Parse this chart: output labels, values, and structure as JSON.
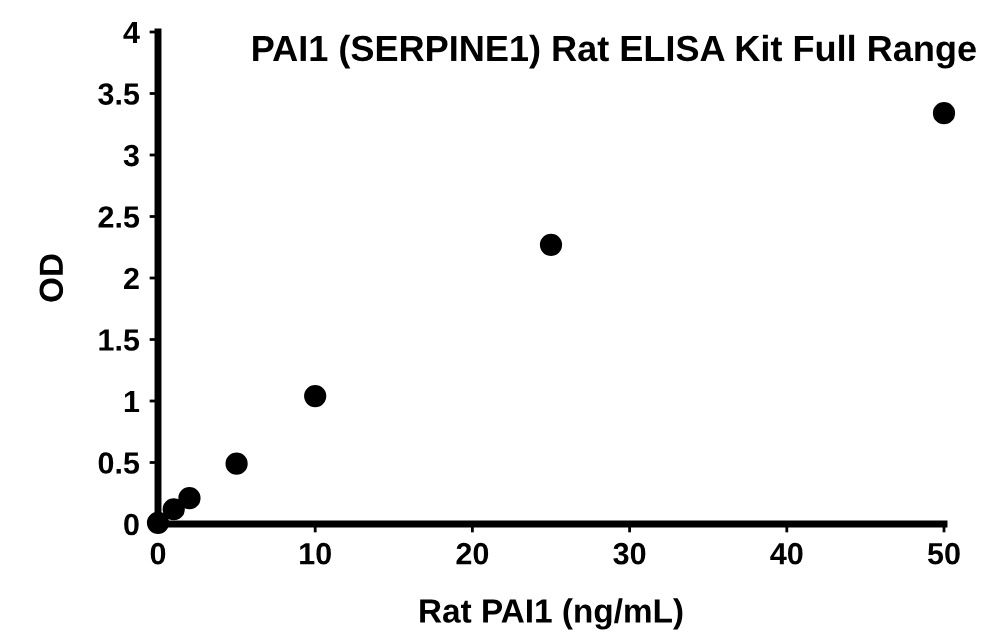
{
  "chart_data": {
    "type": "scatter",
    "title": "PAI1 (SERPINE1) Rat ELISA Kit Full Range",
    "xlabel": "Rat PAI1 (ng/mL)",
    "ylabel": "OD",
    "x": [
      0,
      1,
      2,
      5,
      10,
      25,
      50
    ],
    "series": [
      {
        "color": "#000000",
        "values": [
          0.01,
          0.12,
          0.21,
          0.49,
          1.04,
          2.27,
          3.34
        ]
      }
    ],
    "xlim": [
      0,
      50
    ],
    "ylim": [
      0,
      4
    ],
    "xticks": [
      0,
      10,
      20,
      30,
      40,
      50
    ],
    "yticks": [
      0,
      0.5,
      1,
      1.5,
      2,
      2.5,
      3,
      3.5,
      4
    ],
    "marker": "circle",
    "grid": false,
    "legend": false
  }
}
